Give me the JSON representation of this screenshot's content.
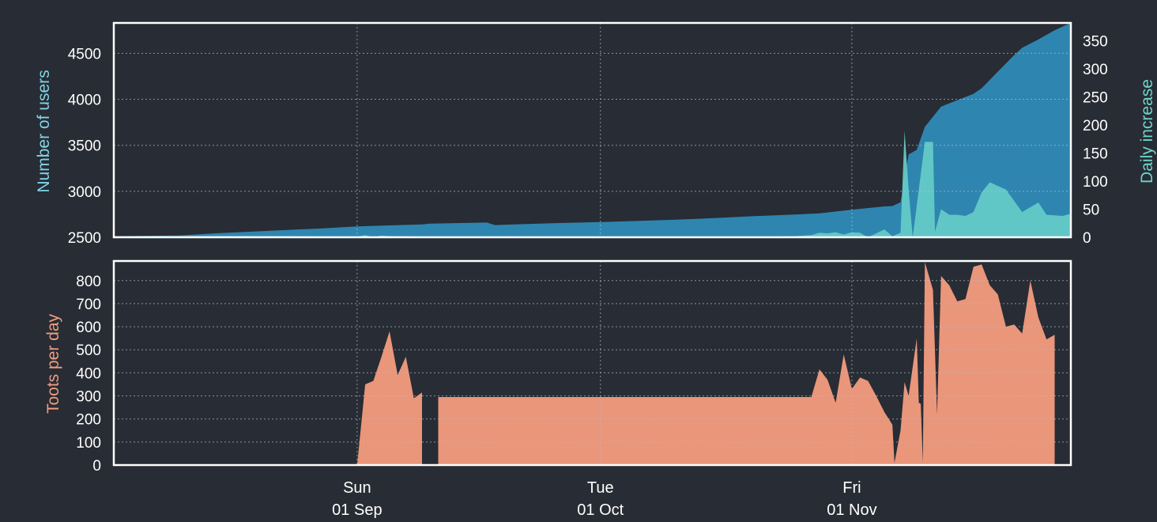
{
  "colors": {
    "background": "#282c34",
    "users": "#2e86b0",
    "daily": "#66cdc8",
    "toots": "#e9967b",
    "users_label": "#80d4e8",
    "daily_label": "#6cd6cc",
    "toots_label": "#ef9d80"
  },
  "chart_data": [
    {
      "type": "area",
      "title": "",
      "ylabel": "Number of users",
      "ylabel_right": "Daily increase",
      "x_range": [
        "2019-08-02",
        "2019-11-28"
      ],
      "ylim": [
        2500,
        4830
      ],
      "ylim_right": [
        0,
        382
      ],
      "yticks": [
        2500,
        3000,
        3500,
        4000,
        4500
      ],
      "yticks_right": [
        0,
        50,
        100,
        150,
        200,
        250,
        300,
        350
      ],
      "grid": true,
      "series": [
        {
          "name": "",
          "axis": "left",
          "points": [
            [
              "2019-08-02",
              2512
            ],
            [
              "2019-08-10",
              2520
            ],
            [
              "2019-08-15",
              2545
            ],
            [
              "2019-08-20",
              2565
            ],
            [
              "2019-08-28",
              2598
            ],
            [
              "2019-09-01",
              2618
            ],
            [
              "2019-09-09",
              2640
            ],
            [
              "2019-09-10",
              2648
            ],
            [
              "2019-09-17",
              2660
            ],
            [
              "2019-09-18",
              2632
            ],
            [
              "2019-09-20",
              2638
            ],
            [
              "2019-09-25",
              2652
            ],
            [
              "2019-10-01",
              2665
            ],
            [
              "2019-10-10",
              2690
            ],
            [
              "2019-10-15",
              2708
            ],
            [
              "2019-10-20",
              2730
            ],
            [
              "2019-10-25",
              2748
            ],
            [
              "2019-10-28",
              2760
            ],
            [
              "2019-11-01",
              2800
            ],
            [
              "2019-11-05",
              2835
            ],
            [
              "2019-11-06",
              2840
            ],
            [
              "2019-11-07",
              2880
            ],
            [
              "2019-11-08",
              3400
            ],
            [
              "2019-11-09",
              3450
            ],
            [
              "2019-11-10",
              3700
            ],
            [
              "2019-11-12",
              3920
            ],
            [
              "2019-11-14",
              3990
            ],
            [
              "2019-11-16",
              4060
            ],
            [
              "2019-11-17",
              4120
            ],
            [
              "2019-11-19",
              4300
            ],
            [
              "2019-11-21",
              4480
            ],
            [
              "2019-11-22",
              4560
            ],
            [
              "2019-11-24",
              4650
            ],
            [
              "2019-11-26",
              4750
            ],
            [
              "2019-11-28",
              4830
            ]
          ]
        },
        {
          "name": "",
          "axis": "right",
          "points": [
            [
              "2019-08-02",
              2
            ],
            [
              "2019-08-20",
              2
            ],
            [
              "2019-09-01",
              1
            ],
            [
              "2019-09-02",
              4
            ],
            [
              "2019-09-03",
              0
            ],
            [
              "2019-09-04",
              3
            ],
            [
              "2019-09-05",
              2
            ],
            [
              "2019-09-10",
              1
            ],
            [
              "2019-09-20",
              1
            ],
            [
              "2019-10-01",
              1
            ],
            [
              "2019-10-20",
              1
            ],
            [
              "2019-10-25",
              2
            ],
            [
              "2019-10-27",
              4
            ],
            [
              "2019-10-28",
              8
            ],
            [
              "2019-10-29",
              7
            ],
            [
              "2019-10-30",
              9
            ],
            [
              "2019-10-31",
              5
            ],
            [
              "2019-11-01",
              9
            ],
            [
              "2019-11-02",
              8
            ],
            [
              "2019-11-03",
              0
            ],
            [
              "2019-11-04",
              7
            ],
            [
              "2019-11-05",
              14
            ],
            [
              "2019-11-06",
              2
            ],
            [
              "2019-11-07",
              8
            ],
            [
              "2019-11-07T12:00",
              190
            ],
            [
              "2019-11-08",
              85
            ],
            [
              "2019-11-08T12:00",
              0
            ],
            [
              "2019-11-10",
              170
            ],
            [
              "2019-11-11",
              170
            ],
            [
              "2019-11-11T06:00",
              10
            ],
            [
              "2019-11-12",
              50
            ],
            [
              "2019-11-13",
              40
            ],
            [
              "2019-11-14",
              40
            ],
            [
              "2019-11-15",
              38
            ],
            [
              "2019-11-16",
              45
            ],
            [
              "2019-11-17",
              80
            ],
            [
              "2019-11-18",
              98
            ],
            [
              "2019-11-20",
              85
            ],
            [
              "2019-11-22",
              45
            ],
            [
              "2019-11-24",
              62
            ],
            [
              "2019-11-25",
              40
            ],
            [
              "2019-11-27",
              38
            ],
            [
              "2019-11-28",
              42
            ]
          ]
        }
      ]
    },
    {
      "type": "area",
      "title": "",
      "ylabel": "Toots per day",
      "x_range": [
        "2019-08-02",
        "2019-11-28"
      ],
      "ylim": [
        0,
        885
      ],
      "yticks": [
        0,
        100,
        200,
        300,
        400,
        500,
        600,
        700,
        800
      ],
      "xticks": [
        {
          "date": "2019-09-01",
          "label": "Sun\n01 Sep"
        },
        {
          "date": "2019-10-01",
          "label": "Tue\n01 Oct"
        },
        {
          "date": "2019-11-01",
          "label": "Fri\n01 Nov"
        }
      ],
      "grid": true,
      "series": [
        {
          "name": "",
          "segments": [
            [
              [
                "2019-09-01",
                0
              ],
              [
                "2019-09-02",
                350
              ],
              [
                "2019-09-03",
                365
              ],
              [
                "2019-09-04",
                470
              ],
              [
                "2019-09-05",
                580
              ],
              [
                "2019-09-06",
                390
              ],
              [
                "2019-09-07",
                470
              ],
              [
                "2019-09-08",
                290
              ],
              [
                "2019-09-09",
                315
              ]
            ],
            [
              [
                "2019-09-11",
                295
              ],
              [
                "2019-10-27",
                295
              ],
              [
                "2019-10-28",
                415
              ],
              [
                "2019-10-29",
                370
              ],
              [
                "2019-10-30",
                270
              ],
              [
                "2019-10-31",
                480
              ],
              [
                "2019-11-01",
                330
              ],
              [
                "2019-11-02",
                380
              ],
              [
                "2019-11-03",
                365
              ],
              [
                "2019-11-04",
                300
              ],
              [
                "2019-11-05",
                230
              ],
              [
                "2019-11-06",
                175
              ],
              [
                "2019-11-06T06:00",
                10
              ],
              [
                "2019-11-07",
                150
              ],
              [
                "2019-11-07T12:00",
                360
              ],
              [
                "2019-11-08",
                300
              ],
              [
                "2019-11-09",
                550
              ],
              [
                "2019-11-09T06:00",
                270
              ],
              [
                "2019-11-09T12:00",
                265
              ],
              [
                "2019-11-09T18:00",
                10
              ],
              [
                "2019-11-10",
                880
              ],
              [
                "2019-11-11",
                760
              ],
              [
                "2019-11-11T12:00",
                220
              ],
              [
                "2019-11-12",
                820
              ],
              [
                "2019-11-13",
                780
              ],
              [
                "2019-11-14",
                710
              ],
              [
                "2019-11-15",
                720
              ],
              [
                "2019-11-16",
                860
              ],
              [
                "2019-11-17",
                870
              ],
              [
                "2019-11-18",
                780
              ],
              [
                "2019-11-19",
                740
              ],
              [
                "2019-11-20",
                600
              ],
              [
                "2019-11-21",
                610
              ],
              [
                "2019-11-22",
                570
              ],
              [
                "2019-11-23",
                800
              ],
              [
                "2019-11-24",
                640
              ],
              [
                "2019-11-25",
                545
              ],
              [
                "2019-11-26",
                565
              ]
            ]
          ]
        }
      ]
    }
  ]
}
